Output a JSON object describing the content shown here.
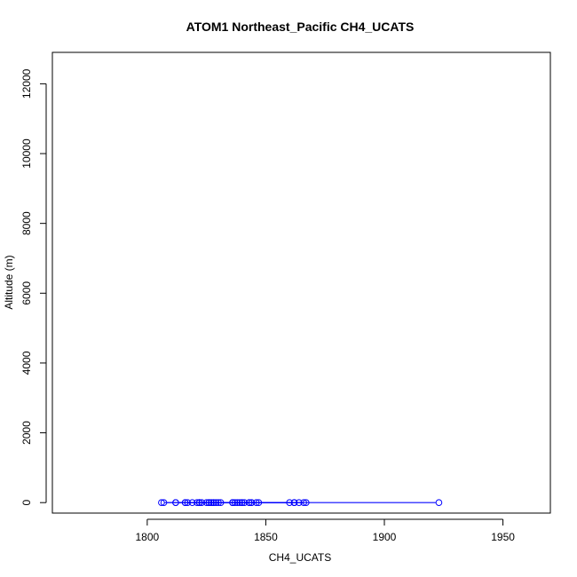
{
  "chart_data": {
    "type": "line",
    "title": "ATOM1 Northeast_Pacific CH4_UCATS",
    "xlabel": "CH4_UCATS",
    "ylabel": "Altitude (m)",
    "xlim": [
      1760,
      1970
    ],
    "ylim": [
      -300,
      12900
    ],
    "xticks": [
      1800,
      1850,
      1900,
      1950
    ],
    "yticks": [
      0,
      2000,
      4000,
      6000,
      8000,
      10000,
      12000
    ],
    "series": [
      {
        "color": "#0000ff",
        "marker": "open-circle",
        "x": [
          1822,
          1821,
          1843,
          1826,
          1840,
          1828,
          1860,
          1836,
          1816,
          1923,
          1830,
          1812,
          1819,
          1822,
          1843,
          1862,
          1847,
          1837,
          1812,
          1838,
          1839,
          1817,
          1816,
          1807,
          1826,
          1829,
          1825,
          1836,
          1827,
          1844,
          1846,
          1822,
          1806,
          1844,
          1864,
          1836,
          1867,
          1827,
          1862,
          1841,
          1866,
          1840,
          1862,
          1826,
          1823,
          1828,
          1822,
          1831
        ],
        "y": [
          0,
          0,
          0,
          0,
          0,
          0,
          0,
          0,
          0,
          0,
          0,
          0,
          0,
          0,
          0,
          0,
          0,
          0,
          0,
          0,
          0,
          0,
          0,
          0,
          0,
          0,
          0,
          0,
          0,
          0,
          0,
          0,
          0,
          0,
          0,
          0,
          0,
          0,
          0,
          0,
          0,
          0,
          0,
          0,
          0,
          0,
          0,
          0
        ]
      }
    ]
  }
}
